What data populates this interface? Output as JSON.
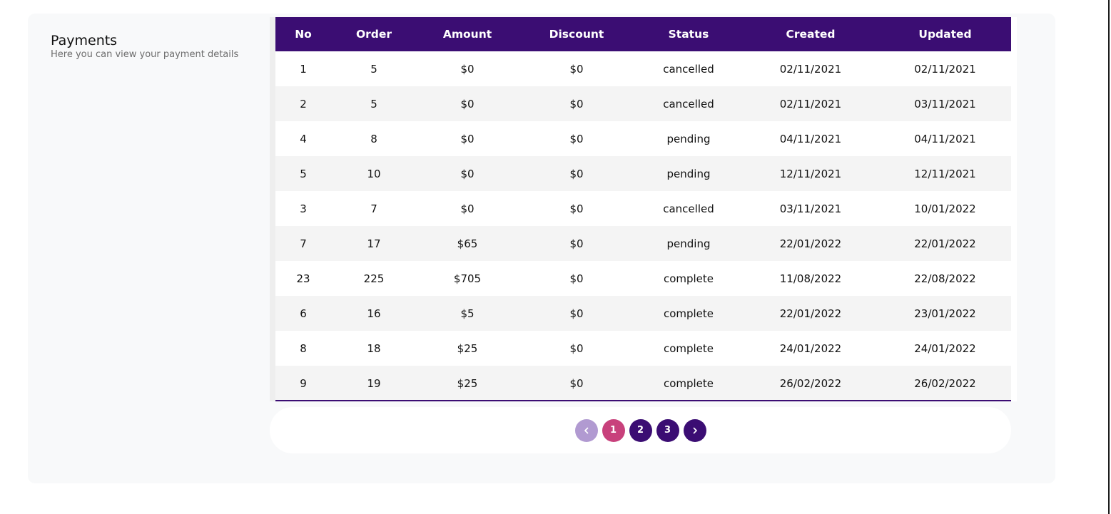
{
  "section": {
    "title": "Payments",
    "subtitle": "Here you can view your payment details"
  },
  "table": {
    "columns": [
      "No",
      "Order",
      "Amount",
      "Discount",
      "Status",
      "Created",
      "Updated"
    ],
    "rows": [
      {
        "no": "1",
        "order": "5",
        "amount": "$0",
        "discount": "$0",
        "status": "cancelled",
        "created": "02/11/2021",
        "updated": "02/11/2021"
      },
      {
        "no": "2",
        "order": "5",
        "amount": "$0",
        "discount": "$0",
        "status": "cancelled",
        "created": "02/11/2021",
        "updated": "03/11/2021"
      },
      {
        "no": "4",
        "order": "8",
        "amount": "$0",
        "discount": "$0",
        "status": "pending",
        "created": "04/11/2021",
        "updated": "04/11/2021"
      },
      {
        "no": "5",
        "order": "10",
        "amount": "$0",
        "discount": "$0",
        "status": "pending",
        "created": "12/11/2021",
        "updated": "12/11/2021"
      },
      {
        "no": "3",
        "order": "7",
        "amount": "$0",
        "discount": "$0",
        "status": "cancelled",
        "created": "03/11/2021",
        "updated": "10/01/2022"
      },
      {
        "no": "7",
        "order": "17",
        "amount": "$65",
        "discount": "$0",
        "status": "pending",
        "created": "22/01/2022",
        "updated": "22/01/2022"
      },
      {
        "no": "23",
        "order": "225",
        "amount": "$705",
        "discount": "$0",
        "status": "complete",
        "created": "11/08/2022",
        "updated": "22/08/2022"
      },
      {
        "no": "6",
        "order": "16",
        "amount": "$5",
        "discount": "$0",
        "status": "complete",
        "created": "22/01/2022",
        "updated": "23/01/2022"
      },
      {
        "no": "8",
        "order": "18",
        "amount": "$25",
        "discount": "$0",
        "status": "complete",
        "created": "24/01/2022",
        "updated": "24/01/2022"
      },
      {
        "no": "9",
        "order": "19",
        "amount": "$25",
        "discount": "$0",
        "status": "complete",
        "created": "26/02/2022",
        "updated": "26/02/2022"
      }
    ]
  },
  "pagination": {
    "prev_icon": "chevron-left-icon",
    "next_icon": "chevron-right-icon",
    "pages": [
      "1",
      "2",
      "3"
    ],
    "current": "1"
  },
  "colors": {
    "header_bg": "#3b0d73",
    "active_page": "#c8417c",
    "disabled_page": "#b19ad1"
  }
}
